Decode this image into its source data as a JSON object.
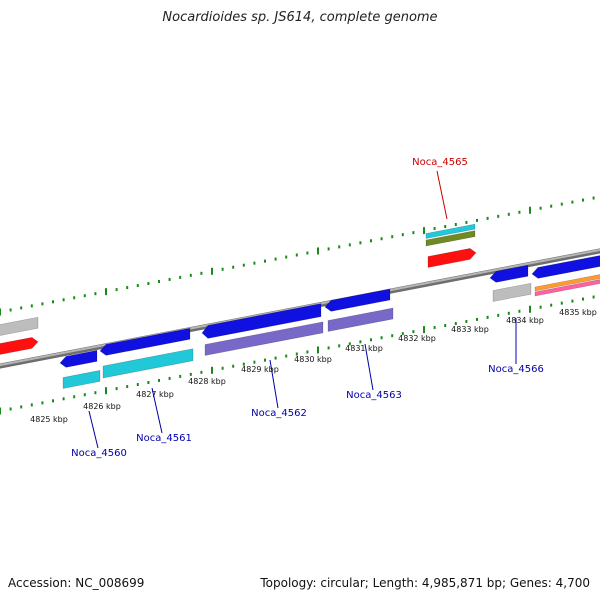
{
  "title": "Nocardioides sp. JS614, complete genome",
  "footer": {
    "accession": "Accession: NC_008699",
    "stats": "Topology: circular; Length: 4,985,871 bp; Genes: 4,700"
  },
  "colors": {
    "backbone": "#8a8a8a",
    "ticks": "#1a8a1a",
    "gene_blue": "#1010e0",
    "gene_red": "#ff1010",
    "gene_cyan": "#20c8d8",
    "gene_purple": "#7868c8",
    "gene_grey": "#bdbdbd",
    "gene_olive": "#6f8a22",
    "label_blue": "#0000aa",
    "label_red": "#cc0000"
  },
  "scale_labels": [
    "4825 kbp",
    "4826 kbp",
    "4827 kbp",
    "4828 kbp",
    "4829 kbp",
    "4830 kbp",
    "4831 kbp",
    "4832 kbp",
    "4833 kbp",
    "4834 kbp",
    "4835 kbp"
  ],
  "gene_labels": [
    {
      "text": "Noca_4560",
      "color": "blue"
    },
    {
      "text": "Noca_4561",
      "color": "blue"
    },
    {
      "text": "Noca_4562",
      "color": "blue"
    },
    {
      "text": "Noca_4563",
      "color": "blue"
    },
    {
      "text": "Noca_4565",
      "color": "red"
    },
    {
      "text": "Noca_4566",
      "color": "blue"
    }
  ]
}
